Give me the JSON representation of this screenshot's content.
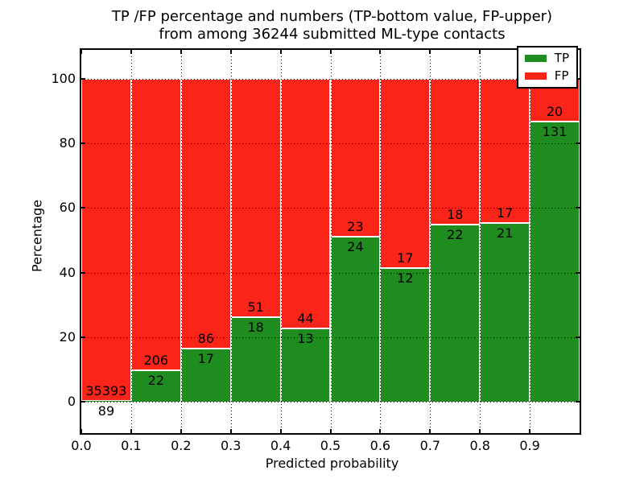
{
  "figure": {
    "title_line1": "TP /FP percentage and numbers (TP-bottom value, FP-upper)",
    "title_line2": "from among 36244 submitted ML-type contacts"
  },
  "chart_data": {
    "type": "bar",
    "stacked": true,
    "title": "TP /FP percentage and numbers (TP-bottom value, FP-upper)\nfrom among 36244 submitted ML-type contacts",
    "xlabel": "Predicted probability",
    "ylabel": "Percentage",
    "total_submitted_contacts": 36244,
    "bin_width": 0.1,
    "categories": [
      "0.0",
      "0.1",
      "0.2",
      "0.3",
      "0.4",
      "0.5",
      "0.6",
      "0.7",
      "0.8",
      "0.9"
    ],
    "x_tick_labels": [
      "0.0",
      "0.1",
      "0.2",
      "0.3",
      "0.4",
      "0.5",
      "0.6",
      "0.7",
      "0.8",
      "0.9"
    ],
    "y_tick_values": [
      0,
      20,
      40,
      60,
      80,
      100
    ],
    "xlim": [
      0.0,
      1.0
    ],
    "ylim": [
      -9.7,
      109.0
    ],
    "grid": {
      "visible": true,
      "style": "dotted",
      "color": "#000000"
    },
    "bar_edge_color": "#ffffff",
    "legend": {
      "position": "upper-right",
      "entries": [
        {
          "label": "TP",
          "color": "#1e8c1e"
        },
        {
          "label": "FP",
          "color": "#fa2418"
        }
      ]
    },
    "series": [
      {
        "name": "TP",
        "color": "#1e8c1e",
        "values": [
          89,
          22,
          17,
          18,
          13,
          24,
          12,
          22,
          21,
          131
        ]
      },
      {
        "name": "FP",
        "color": "#fa2418",
        "values": [
          35393,
          206,
          86,
          51,
          44,
          23,
          17,
          18,
          17,
          20
        ]
      }
    ],
    "tp_percent": [
      0.25,
      9.65,
      16.5,
      26.09,
      22.81,
      51.06,
      41.38,
      55.0,
      55.26,
      86.75
    ]
  }
}
